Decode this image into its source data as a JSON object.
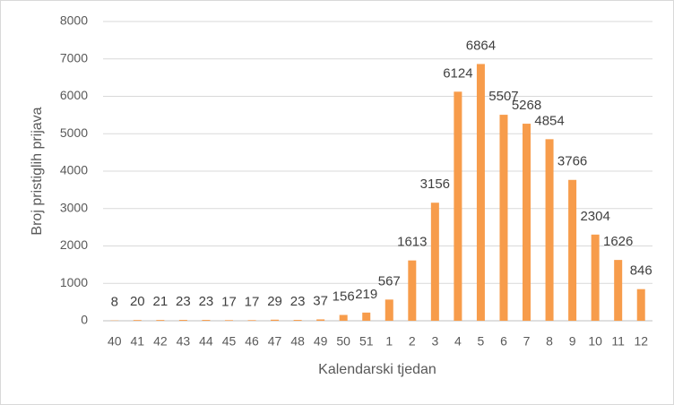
{
  "chart_data": {
    "type": "bar",
    "x_label": "Kalendarski tjedan",
    "y_label": "Broj pristiglih prijava",
    "categories": [
      "40",
      "41",
      "42",
      "43",
      "44",
      "45",
      "46",
      "47",
      "48",
      "49",
      "50",
      "51",
      "1",
      "2",
      "3",
      "4",
      "5",
      "6",
      "7",
      "8",
      "9",
      "10",
      "11",
      "12"
    ],
    "values": [
      8,
      20,
      21,
      23,
      23,
      17,
      17,
      29,
      23,
      37,
      156,
      219,
      567,
      1613,
      3156,
      6124,
      6864,
      5507,
      5268,
      4854,
      3766,
      2304,
      1626,
      846
    ],
    "color": "#f79c4b",
    "ylim": [
      0,
      8000
    ],
    "yticks": [
      0,
      1000,
      2000,
      3000,
      4000,
      5000,
      6000,
      7000,
      8000
    ],
    "grid": true
  }
}
